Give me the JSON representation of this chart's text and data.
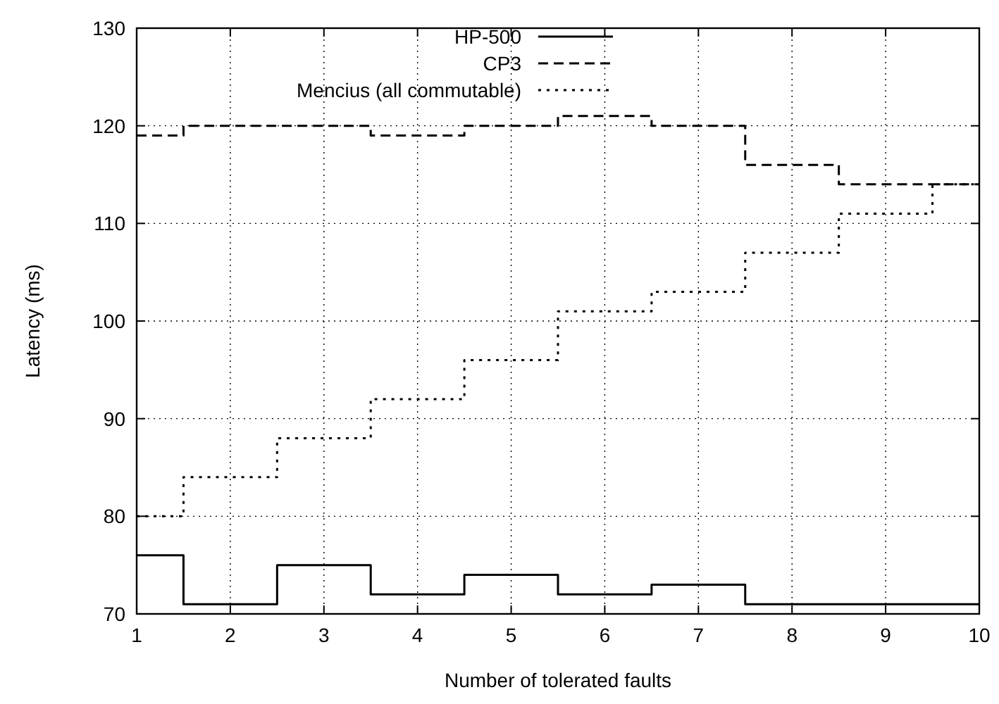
{
  "chart_data": {
    "type": "step",
    "xlabel": "Number of tolerated faults",
    "ylabel": "Latency (ms)",
    "x": [
      1,
      2,
      3,
      4,
      5,
      6,
      7,
      8,
      9,
      10
    ],
    "xlim": [
      1,
      10
    ],
    "xticks": [
      1,
      2,
      3,
      4,
      5,
      6,
      7,
      8,
      9,
      10
    ],
    "ylim": [
      70,
      130
    ],
    "yticks": [
      70,
      80,
      90,
      100,
      110,
      120,
      130
    ],
    "grid": true,
    "legend": "top",
    "series": [
      {
        "name": "HP-500",
        "color": "#000000",
        "line_style": "solid",
        "values": [
          76,
          71,
          75,
          72,
          74,
          72,
          73,
          71,
          71,
          71
        ]
      },
      {
        "name": "CP3",
        "color": "#000000",
        "line_style": "dashed",
        "values": [
          119,
          120,
          120,
          119,
          120,
          121,
          120,
          116,
          114,
          114
        ]
      },
      {
        "name": "Mencius (all commutable)",
        "color": "#000000",
        "line_style": "dotted",
        "values": [
          80,
          84,
          88,
          92,
          96,
          101,
          103,
          107,
          111,
          114
        ]
      }
    ]
  }
}
